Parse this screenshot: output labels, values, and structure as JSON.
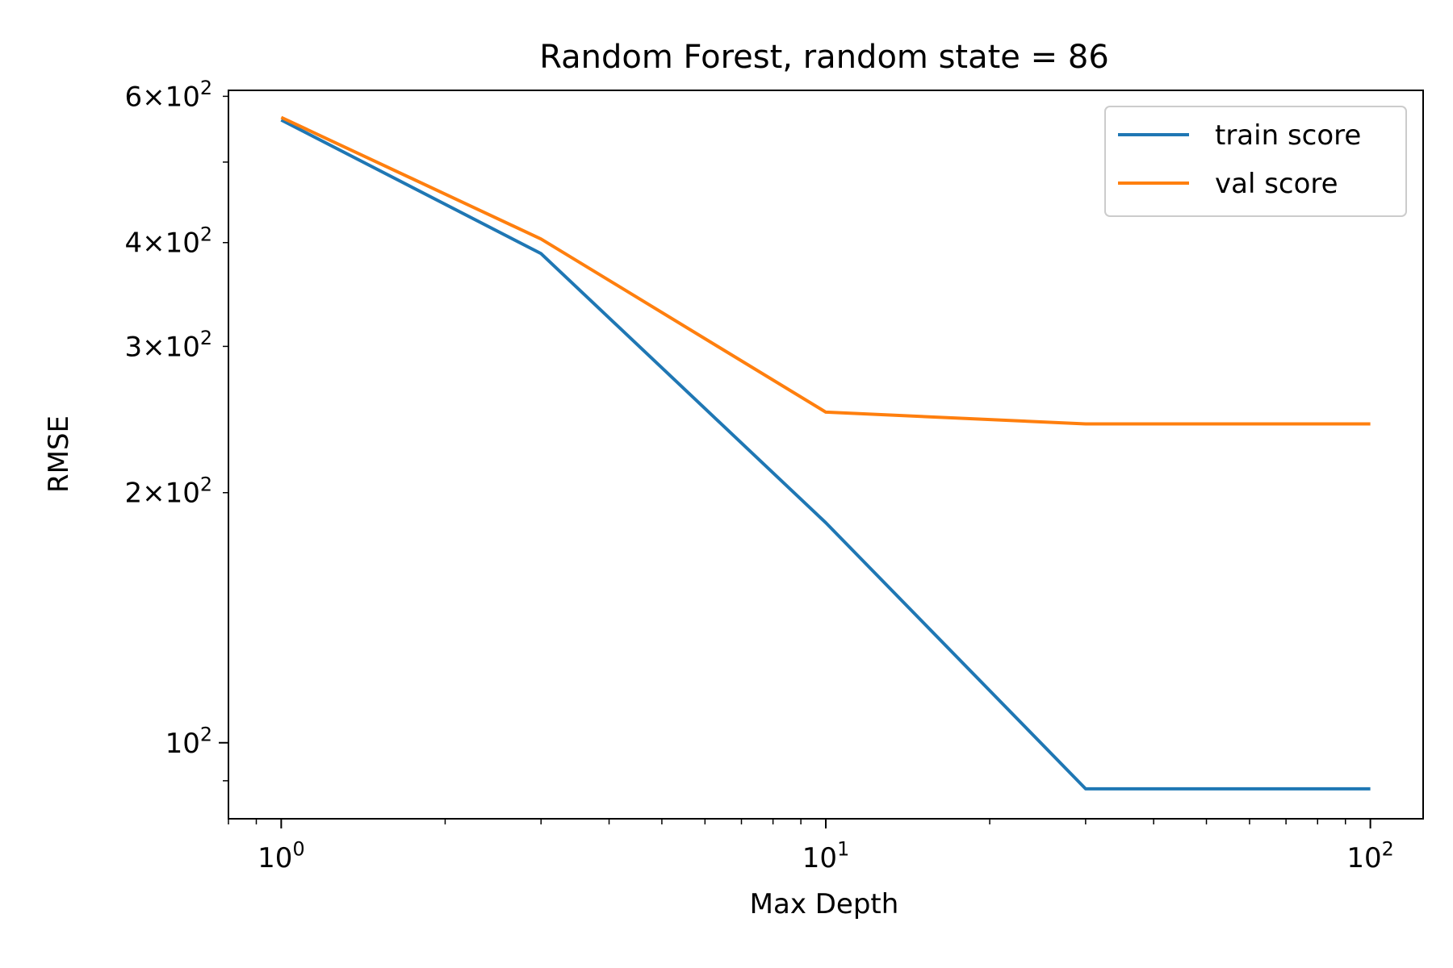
{
  "chart_data": {
    "type": "line",
    "title": "Random Forest, random state = 86",
    "xlabel": "Max Depth",
    "ylabel": "RMSE",
    "xscale": "log",
    "yscale": "log",
    "xlim": [
      0.8,
      125
    ],
    "ylim": [
      81,
      610
    ],
    "grid": false,
    "legend_position": "top-right",
    "x_major_ticks": [
      {
        "value": 1,
        "base": "10",
        "exp": "0"
      },
      {
        "value": 10,
        "base": "10",
        "exp": "1"
      },
      {
        "value": 100,
        "base": "10",
        "exp": "2"
      }
    ],
    "y_major_ticks": [
      {
        "value": 100,
        "base": "10",
        "exp": "2"
      }
    ],
    "y_minor_labeled_ticks": [
      {
        "value": 200,
        "mant": "2",
        "base": "10",
        "exp": "2"
      },
      {
        "value": 300,
        "mant": "3",
        "base": "10",
        "exp": "2"
      },
      {
        "value": 400,
        "mant": "4",
        "base": "10",
        "exp": "2"
      },
      {
        "value": 600,
        "mant": "6",
        "base": "10",
        "exp": "2"
      }
    ],
    "times_symbol": "×",
    "series": [
      {
        "name": "train score",
        "color": "#1f77b4",
        "x": [
          1,
          3,
          10,
          30,
          100
        ],
        "y": [
          562,
          388,
          184,
          88,
          88
        ]
      },
      {
        "name": "val score",
        "color": "#ff7f0e",
        "x": [
          1,
          3,
          10,
          30,
          100
        ],
        "y": [
          566,
          404,
          250,
          242,
          242
        ]
      }
    ]
  }
}
